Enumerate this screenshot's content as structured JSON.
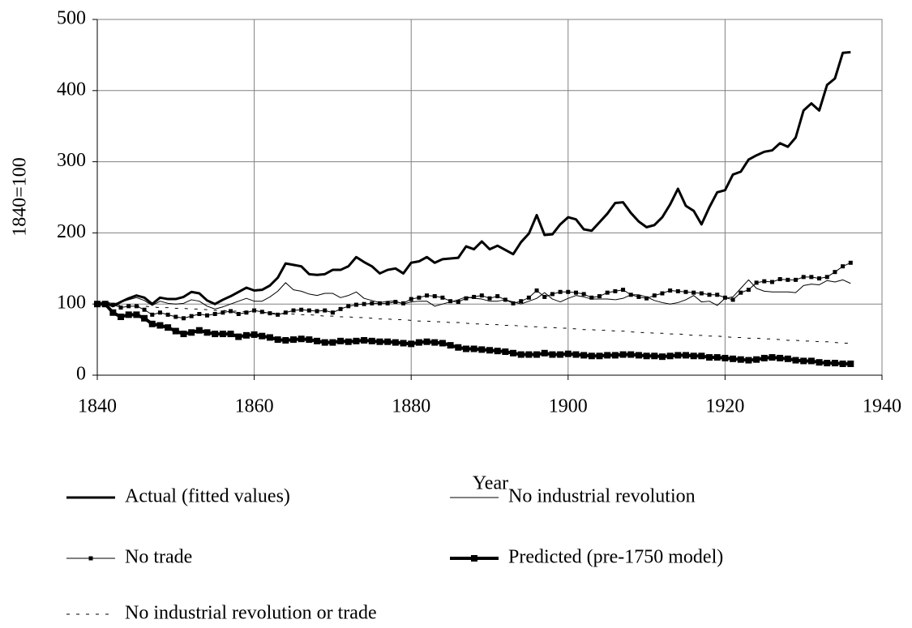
{
  "chart_data": {
    "type": "line",
    "x_label": "Year",
    "y_label": "1840=100",
    "xlim": [
      1840,
      1940
    ],
    "xticks": [
      1840,
      1860,
      1880,
      1900,
      1920,
      1940
    ],
    "ylim": [
      0,
      500
    ],
    "yticks": [
      0,
      100,
      200,
      300,
      400,
      500
    ],
    "grid": true,
    "legend": "bottom",
    "x": [
      1840,
      1841,
      1842,
      1843,
      1844,
      1845,
      1846,
      1847,
      1848,
      1849,
      1850,
      1851,
      1852,
      1853,
      1854,
      1855,
      1856,
      1857,
      1858,
      1859,
      1860,
      1861,
      1862,
      1863,
      1864,
      1865,
      1866,
      1867,
      1868,
      1869,
      1870,
      1871,
      1872,
      1873,
      1874,
      1875,
      1876,
      1877,
      1878,
      1879,
      1880,
      1881,
      1882,
      1883,
      1884,
      1885,
      1886,
      1887,
      1888,
      1889,
      1890,
      1891,
      1892,
      1893,
      1894,
      1895,
      1896,
      1897,
      1898,
      1899,
      1900,
      1901,
      1902,
      1903,
      1904,
      1905,
      1906,
      1907,
      1908,
      1909,
      1910,
      1911,
      1912,
      1913,
      1914,
      1915,
      1916,
      1917,
      1918,
      1919,
      1920,
      1921,
      1922,
      1923,
      1924,
      1925,
      1926,
      1927,
      1928,
      1929,
      1930,
      1931,
      1932,
      1933,
      1934,
      1935,
      1936
    ],
    "series": [
      {
        "name": "Actual (fitted values)",
        "color": "#000000",
        "width": 3,
        "dash": "none",
        "marker": "none",
        "values": [
          100,
          102,
          97,
          103,
          108,
          112,
          109,
          100,
          109,
          107,
          107,
          110,
          117,
          115,
          105,
          100,
          106,
          111,
          117,
          123,
          119,
          120,
          126,
          137,
          157,
          155,
          153,
          142,
          141,
          142,
          148,
          148,
          153,
          166,
          159,
          153,
          143,
          148,
          150,
          143,
          158,
          160,
          166,
          158,
          163,
          164,
          165,
          181,
          177,
          188,
          177,
          182,
          176,
          170,
          187,
          199,
          225,
          197,
          198,
          212,
          222,
          219,
          205,
          203,
          215,
          227,
          242,
          243,
          228,
          216,
          208,
          211,
          222,
          240,
          262,
          238,
          231,
          212,
          236,
          257,
          260,
          282,
          286,
          303,
          309,
          314,
          316,
          326,
          321,
          334,
          372,
          382,
          372,
          408,
          417,
          453,
          454
        ]
      },
      {
        "name": "No industrial revolution",
        "color": "#000000",
        "width": 1,
        "dash": "none",
        "marker": "none",
        "values": [
          100,
          104,
          100,
          103,
          106,
          109,
          105,
          98,
          104,
          101,
          100,
          101,
          106,
          104,
          97,
          93,
          96,
          100,
          104,
          108,
          104,
          104,
          110,
          118,
          130,
          120,
          118,
          114,
          112,
          115,
          115,
          109,
          112,
          117,
          108,
          105,
          102,
          104,
          104,
          100,
          103,
          104,
          104,
          97,
          100,
          103,
          106,
          110,
          108,
          107,
          104,
          104,
          106,
          103,
          100,
          104,
          108,
          116,
          107,
          103,
          108,
          112,
          110,
          107,
          107,
          107,
          106,
          108,
          113,
          113,
          110,
          105,
          102,
          100,
          102,
          106,
          112,
          103,
          104,
          98,
          108,
          110,
          122,
          134,
          122,
          118,
          117,
          117,
          117,
          116,
          126,
          128,
          127,
          133,
          131,
          134,
          129
        ]
      },
      {
        "name": "No trade",
        "color": "#000000",
        "width": 1,
        "dash": "none",
        "marker": "square-small",
        "values": [
          100,
          101,
          99,
          95,
          97,
          97,
          92,
          85,
          88,
          85,
          82,
          80,
          83,
          86,
          84,
          86,
          88,
          90,
          86,
          88,
          91,
          89,
          87,
          85,
          88,
          91,
          92,
          91,
          90,
          91,
          88,
          93,
          97,
          99,
          100,
          101,
          101,
          101,
          103,
          101,
          107,
          109,
          112,
          111,
          109,
          104,
          103,
          108,
          110,
          112,
          108,
          111,
          106,
          101,
          104,
          109,
          119,
          110,
          114,
          117,
          117,
          116,
          114,
          109,
          111,
          116,
          118,
          120,
          113,
          110,
          108,
          112,
          115,
          119,
          118,
          117,
          116,
          115,
          113,
          113,
          109,
          106,
          116,
          120,
          130,
          132,
          131,
          135,
          134,
          134,
          138,
          138,
          136,
          138,
          145,
          153,
          158
        ]
      },
      {
        "name": "Predicted (pre-1750 model)",
        "color": "#000000",
        "width": 4,
        "dash": "none",
        "marker": "square-large",
        "values": [
          100,
          100,
          88,
          82,
          85,
          85,
          80,
          72,
          70,
          67,
          62,
          58,
          60,
          63,
          60,
          58,
          58,
          58,
          54,
          56,
          57,
          55,
          53,
          50,
          49,
          50,
          51,
          50,
          48,
          46,
          46,
          48,
          47,
          48,
          49,
          48,
          47,
          47,
          46,
          45,
          44,
          46,
          47,
          46,
          45,
          42,
          39,
          37,
          37,
          36,
          35,
          34,
          33,
          31,
          29,
          29,
          29,
          31,
          29,
          29,
          30,
          29,
          28,
          27,
          27,
          28,
          28,
          29,
          29,
          28,
          27,
          27,
          26,
          27,
          28,
          28,
          27,
          27,
          25,
          25,
          24,
          23,
          22,
          21,
          22,
          24,
          25,
          24,
          23,
          21,
          20,
          20,
          18,
          17,
          17,
          16,
          16
        ]
      },
      {
        "name": "No industrial revolution or trade",
        "color": "#000000",
        "width": 1,
        "dash": "4 8",
        "marker": "none",
        "values": [
          100,
          99,
          99,
          98,
          98,
          97,
          97,
          96,
          95,
          95,
          94,
          94,
          93,
          93,
          92,
          91,
          91,
          90,
          90,
          89,
          89,
          88,
          87,
          87,
          86,
          86,
          85,
          85,
          84,
          83,
          83,
          82,
          82,
          81,
          81,
          80,
          79,
          79,
          78,
          78,
          77,
          76,
          76,
          75,
          75,
          74,
          74,
          73,
          72,
          72,
          71,
          71,
          70,
          70,
          69,
          68,
          68,
          67,
          67,
          66,
          66,
          65,
          64,
          64,
          63,
          63,
          62,
          62,
          61,
          60,
          60,
          59,
          59,
          58,
          58,
          57,
          56,
          56,
          55,
          55,
          54,
          53,
          53,
          52,
          52,
          51,
          51,
          50,
          49,
          49,
          48,
          48,
          47,
          47,
          46,
          45,
          45
        ]
      }
    ]
  }
}
